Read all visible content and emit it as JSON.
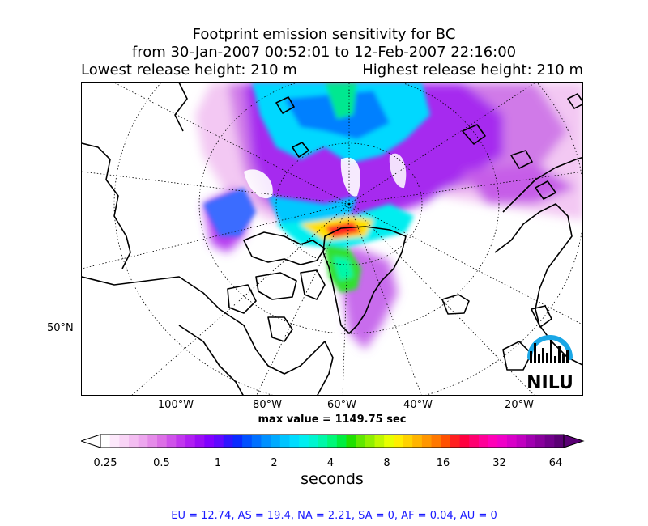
{
  "title": {
    "line1": "Footprint emission sensitivity for BC",
    "line2": "from 30-Jan-2007 00:52:01 to 12-Feb-2007 22:16:00",
    "lowest": "Lowest release height: 210 m",
    "highest": "Highest release height: 210 m"
  },
  "map": {
    "lon_labels": [
      "100°W",
      "80°W",
      "60°W",
      "40°W",
      "20°W"
    ],
    "lat_labels": [
      "50°N"
    ],
    "logo_text": "NILU",
    "max_value": "max value = 1149.75 sec"
  },
  "colorbar": {
    "ticks": [
      "0.25",
      "0.5",
      "1",
      "2",
      "4",
      "8",
      "16",
      "32",
      "64"
    ],
    "label": "seconds",
    "colors": [
      "#ffffff",
      "#fde8fb",
      "#f9d4f6",
      "#f3bdf1",
      "#eda6ee",
      "#e58be9",
      "#dc6fe6",
      "#cf52ea",
      "#c136ee",
      "#b01ef2",
      "#9a0cf5",
      "#8000ff",
      "#6008ff",
      "#3014ff",
      "#0a2aff",
      "#0050ff",
      "#0070ff",
      "#0090ff",
      "#00aaff",
      "#00c4ff",
      "#00dcff",
      "#00eef0",
      "#00f5d0",
      "#00f8a8",
      "#00f878",
      "#00ee40",
      "#20e000",
      "#60e800",
      "#90f000",
      "#c0f800",
      "#e8ff00",
      "#ffee00",
      "#ffd200",
      "#ffb400",
      "#ff9600",
      "#ff7800",
      "#ff5000",
      "#ff2020",
      "#ff0040",
      "#ff0070",
      "#ff0098",
      "#ff00b8",
      "#f000c8",
      "#d800c8",
      "#c000c0",
      "#a000b0",
      "#88009c",
      "#70008a",
      "#5a0074"
    ]
  },
  "regions": "EU = 12.74,  AS = 19.4,  NA = 2.21,  SA = 0,  AF = 0.04,  AU = 0"
}
